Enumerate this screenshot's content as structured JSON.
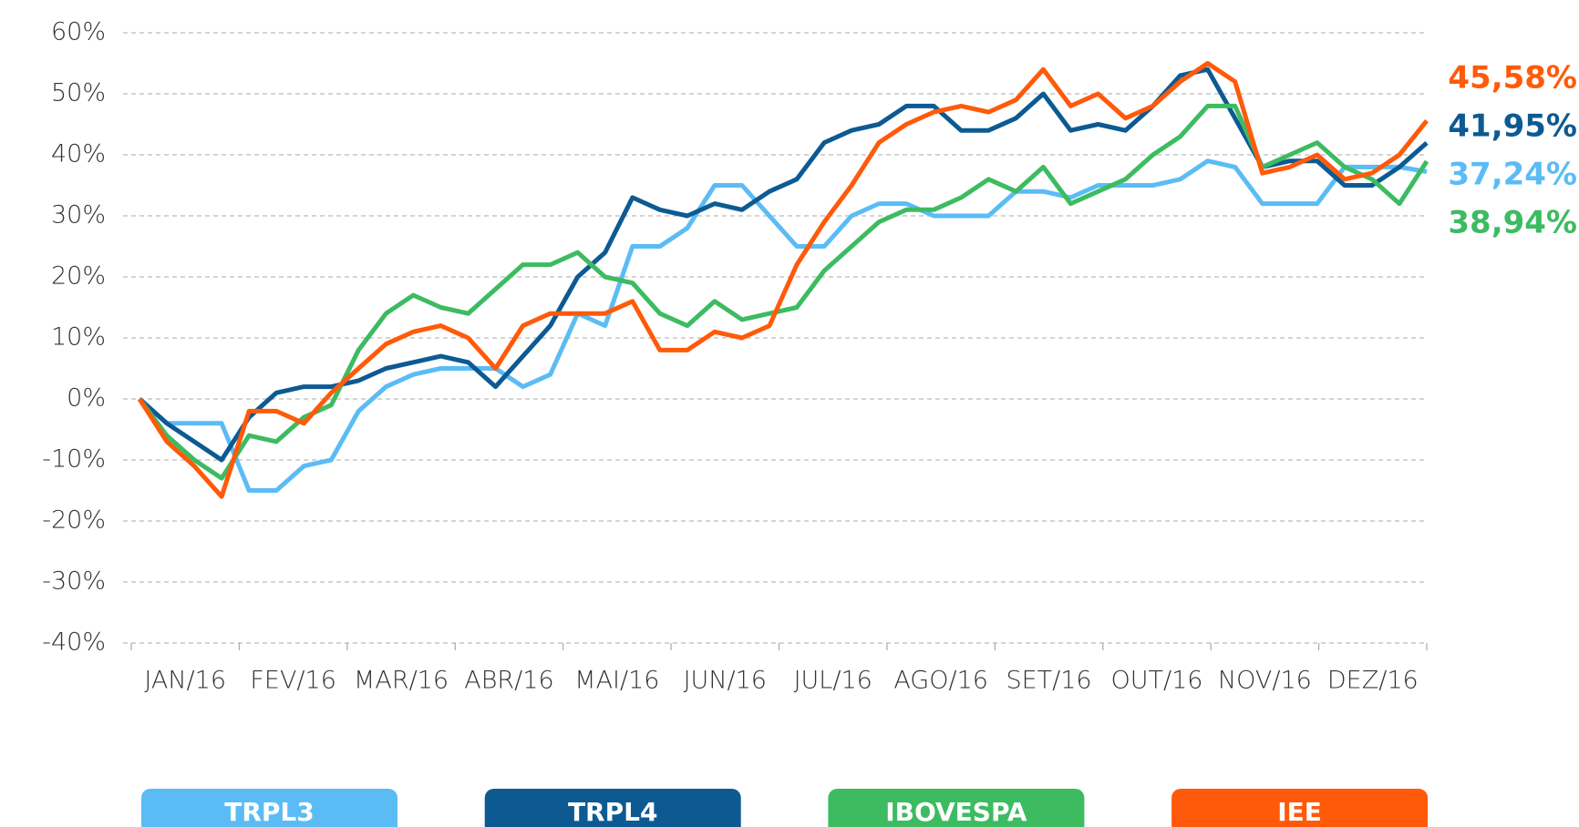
{
  "chart_data": {
    "type": "line",
    "categories": [
      "JAN/16",
      null,
      null,
      null,
      "FEV/16",
      null,
      null,
      null,
      "MAR/16",
      null,
      null,
      null,
      "ABR/16",
      null,
      null,
      null,
      "MAI/16",
      null,
      null,
      null,
      "JUN/16",
      null,
      null,
      null,
      "JUL/16",
      null,
      null,
      null,
      "AGO/16",
      null,
      null,
      null,
      "SET/16",
      null,
      null,
      null,
      "OUT/16",
      null,
      null,
      null,
      "NOV/16",
      null,
      null,
      null,
      "DEZ/16",
      null,
      null,
      null
    ],
    "ylim": [
      -40,
      60
    ],
    "yticks": [
      {
        "value": -40,
        "label": "-40%"
      },
      {
        "value": -30,
        "label": "-30%"
      },
      {
        "value": -20,
        "label": "-20%"
      },
      {
        "value": -10,
        "label": "-10%"
      },
      {
        "value": 0,
        "label": "0%"
      },
      {
        "value": 10,
        "label": "10%"
      },
      {
        "value": 20,
        "label": "20%"
      },
      {
        "value": 30,
        "label": "30%"
      },
      {
        "value": 40,
        "label": "40%"
      },
      {
        "value": 50,
        "label": "50%"
      },
      {
        "value": 60,
        "label": "60%"
      }
    ],
    "grid": true,
    "series": [
      {
        "name": "TRPL3",
        "color": "#5bbcf5",
        "end_label": "37,24%",
        "values": [
          0,
          -4,
          -4,
          -4,
          -15,
          -15,
          -11,
          -10,
          -2,
          2,
          4,
          5,
          5,
          5,
          2,
          4,
          14,
          12,
          25,
          25,
          28,
          35,
          35,
          30,
          25,
          25,
          30,
          32,
          32,
          30,
          30,
          30,
          34,
          34,
          33,
          35,
          35,
          35,
          36,
          39,
          38,
          32,
          32,
          32,
          38,
          38,
          38,
          37.24
        ]
      },
      {
        "name": "TRPL4",
        "color": "#0d5a93",
        "end_label": "41,95%",
        "values": [
          0,
          -4,
          -7,
          -10,
          -3,
          1,
          2,
          2,
          3,
          5,
          6,
          7,
          6,
          2,
          7,
          12,
          20,
          24,
          33,
          31,
          30,
          32,
          31,
          34,
          36,
          42,
          44,
          45,
          48,
          48,
          44,
          44,
          46,
          50,
          44,
          45,
          44,
          48,
          53,
          54,
          46,
          38,
          39,
          39,
          35,
          35,
          38,
          41.95
        ]
      },
      {
        "name": "IBOVESPA",
        "color": "#3dbb61",
        "end_label": "38,94%",
        "values": [
          0,
          -6,
          -10,
          -13,
          -6,
          -7,
          -3,
          -1,
          8,
          14,
          17,
          15,
          14,
          18,
          22,
          22,
          24,
          20,
          19,
          14,
          12,
          16,
          13,
          14,
          15,
          21,
          25,
          29,
          31,
          31,
          33,
          36,
          34,
          38,
          32,
          34,
          36,
          40,
          43,
          48,
          48,
          38,
          40,
          42,
          38,
          36,
          32,
          38.94
        ]
      },
      {
        "name": "IEE",
        "color": "#ff5a0a",
        "end_label": "45,58%",
        "values": [
          0,
          -7,
          -11,
          -16,
          -2,
          -2,
          -4,
          1,
          5,
          9,
          11,
          12,
          10,
          5,
          12,
          14,
          14,
          14,
          16,
          8,
          8,
          11,
          10,
          12,
          22,
          29,
          35,
          42,
          45,
          47,
          48,
          47,
          49,
          54,
          48,
          50,
          46,
          48,
          52,
          55,
          52,
          37,
          38,
          40,
          36,
          37,
          40,
          45.58
        ]
      }
    ]
  }
}
